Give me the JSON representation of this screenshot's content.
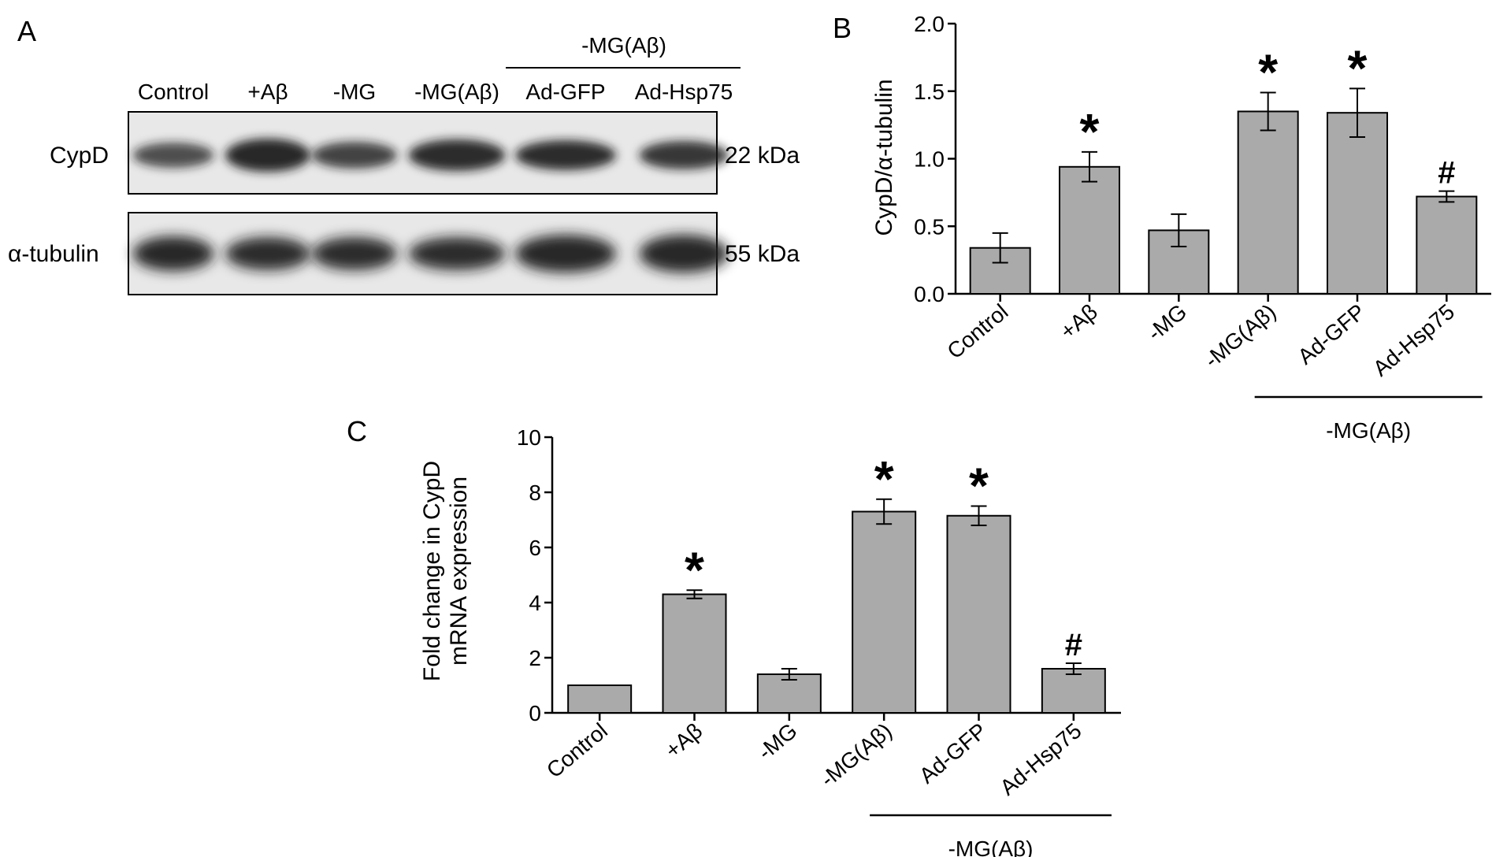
{
  "panel_labels": [
    "A",
    "B",
    "C"
  ],
  "blot": {
    "lanes": [
      "Control",
      "+Aβ",
      "-MG",
      "-MG(Aβ)",
      "Ad-GFP",
      "Ad-Hsp75"
    ],
    "group_label": "-MG(Aβ)",
    "rows": [
      {
        "name": "CypD",
        "size": "22 kDa"
      },
      {
        "name": "α-tubulin",
        "size": "55 kDa"
      }
    ]
  },
  "chart_data": [
    {
      "panel": "B",
      "type": "bar",
      "ylabel": "CypD/α-tubulin",
      "ylabel_lines": [
        "CypD/α-tubulin"
      ],
      "categories": [
        "Control",
        "+Aβ",
        "-MG",
        "-MG(Aβ)",
        "Ad-GFP",
        "Ad-Hsp75"
      ],
      "values": [
        0.34,
        0.94,
        0.47,
        1.35,
        1.34,
        0.72
      ],
      "errors": [
        0.11,
        0.11,
        0.12,
        0.14,
        0.18,
        0.04
      ],
      "annotations": [
        "",
        "*",
        "",
        "*",
        "*",
        "#"
      ],
      "ylim": [
        0,
        2.0
      ],
      "yticks": [
        "0.0",
        "0.5",
        "1.0",
        "1.5",
        "2.0"
      ],
      "bar_color": "#aaaaaa",
      "group_label": "-MG(Aβ)",
      "grid": false
    },
    {
      "panel": "C",
      "type": "bar",
      "ylabel": "Fold change in CypD mRNA expression",
      "ylabel_lines": [
        "Fold change in CypD",
        "mRNA expression"
      ],
      "categories": [
        "Control",
        "+Aβ",
        "-MG",
        "-MG(Aβ)",
        "Ad-GFP",
        "Ad-Hsp75"
      ],
      "values": [
        1.0,
        4.3,
        1.4,
        7.3,
        7.15,
        1.6
      ],
      "errors": [
        0,
        0.15,
        0.2,
        0.45,
        0.35,
        0.2
      ],
      "annotations": [
        "",
        "*",
        "",
        "*",
        "*",
        "#"
      ],
      "ylim": [
        0,
        10
      ],
      "yticks": [
        "0",
        "2",
        "4",
        "6",
        "8",
        "10"
      ],
      "bar_color": "#aaaaaa",
      "group_label": "-MG(Aβ)",
      "grid": false
    }
  ]
}
